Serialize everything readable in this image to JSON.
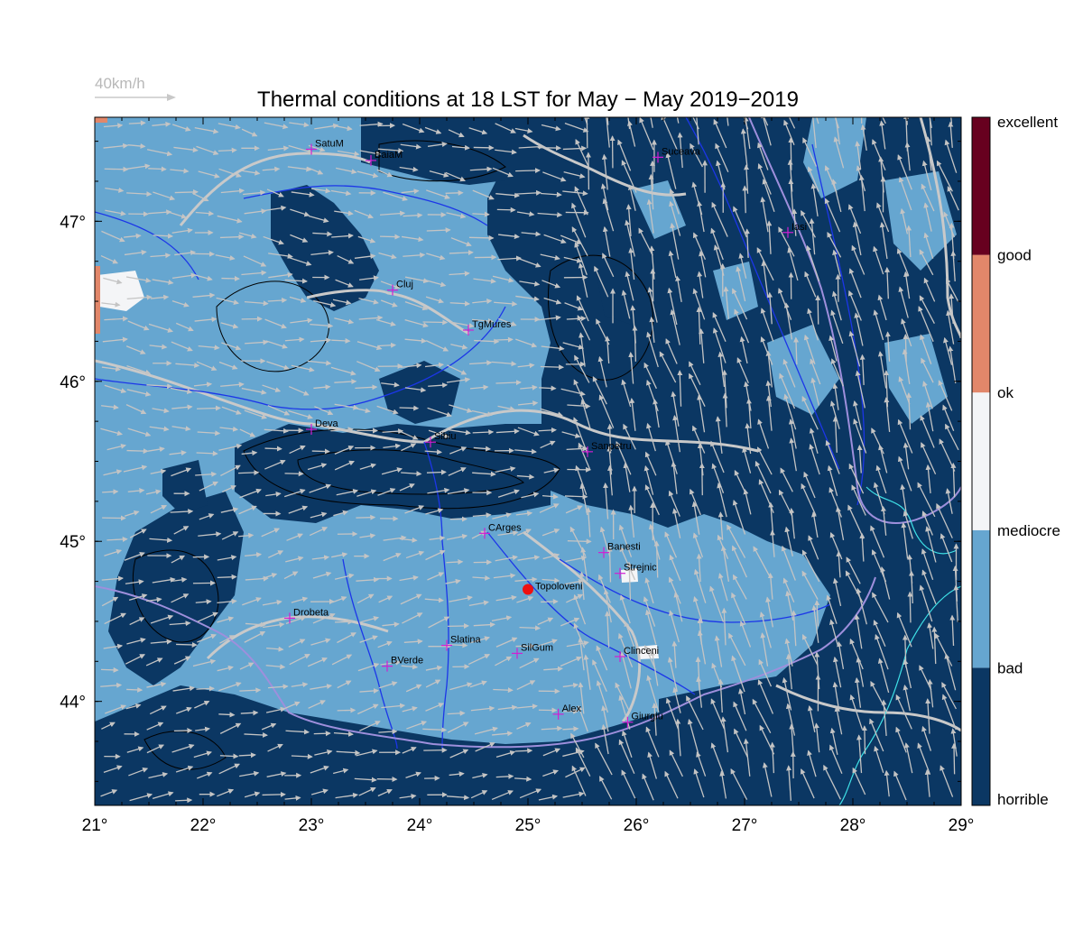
{
  "title": "Thermal conditions at 18 LST for May − May  2019−2019",
  "wind_reference": {
    "label": "40km/h",
    "speed": 40
  },
  "axes": {
    "lon_range": [
      21,
      29
    ],
    "lat_range": [
      43.35,
      47.65
    ],
    "x_ticks": [
      "21°",
      "22°",
      "23°",
      "24°",
      "25°",
      "26°",
      "27°",
      "28°",
      "29°"
    ],
    "y_ticks": [
      "44°",
      "45°",
      "46°",
      "47°"
    ]
  },
  "colorbar": {
    "levels": [
      "horrible",
      "bad",
      "mediocre",
      "ok",
      "good",
      "excellent"
    ],
    "colors": [
      "#0b3763",
      "#66a6d0",
      "#f4f5f7",
      "#e2876a",
      "#67001f"
    ]
  },
  "colors": {
    "horrible": "#0b3763",
    "bad": "#66a6d0",
    "ok": "#f4f5f7",
    "good": "#e2876a",
    "rivers": "#1c36e8",
    "border": "#9e8fdc",
    "roads": "#c9c9c9",
    "wind_arrows": "#c4c4c4",
    "contours": "#000000",
    "lakes": "#3fe0e6",
    "city_marker": "#d21fd2",
    "highlight_marker": "#ee1111"
  },
  "cities": [
    {
      "name": "SatuM",
      "lon": 23.0,
      "lat": 47.45
    },
    {
      "name": "BaiaM",
      "lon": 23.55,
      "lat": 47.38
    },
    {
      "name": "Suceava",
      "lon": 26.2,
      "lat": 47.4
    },
    {
      "name": "Iasi",
      "lon": 27.4,
      "lat": 46.93
    },
    {
      "name": "Cluj",
      "lon": 23.75,
      "lat": 46.57
    },
    {
      "name": "TgMures",
      "lon": 24.45,
      "lat": 46.32
    },
    {
      "name": "Deva",
      "lon": 23.0,
      "lat": 45.7
    },
    {
      "name": "Sibiu",
      "lon": 24.1,
      "lat": 45.62
    },
    {
      "name": "Sanpetru",
      "lon": 25.55,
      "lat": 45.56
    },
    {
      "name": "CArges",
      "lon": 24.6,
      "lat": 45.05
    },
    {
      "name": "Banesti",
      "lon": 25.7,
      "lat": 44.93
    },
    {
      "name": "Strejnic",
      "lon": 25.85,
      "lat": 44.8
    },
    {
      "name": "Drobeta",
      "lon": 22.8,
      "lat": 44.52
    },
    {
      "name": "Slatina",
      "lon": 24.25,
      "lat": 44.35
    },
    {
      "name": "SilGum",
      "lon": 24.9,
      "lat": 44.3
    },
    {
      "name": "Clinceni",
      "lon": 25.85,
      "lat": 44.28
    },
    {
      "name": "BVerde",
      "lon": 23.7,
      "lat": 44.22
    },
    {
      "name": "Alex",
      "lon": 25.28,
      "lat": 43.92
    },
    {
      "name": "Giurgiu",
      "lon": 25.92,
      "lat": 43.87
    }
  ],
  "highlight": {
    "name": "Topoloveni",
    "lon": 25.0,
    "lat": 44.7
  }
}
